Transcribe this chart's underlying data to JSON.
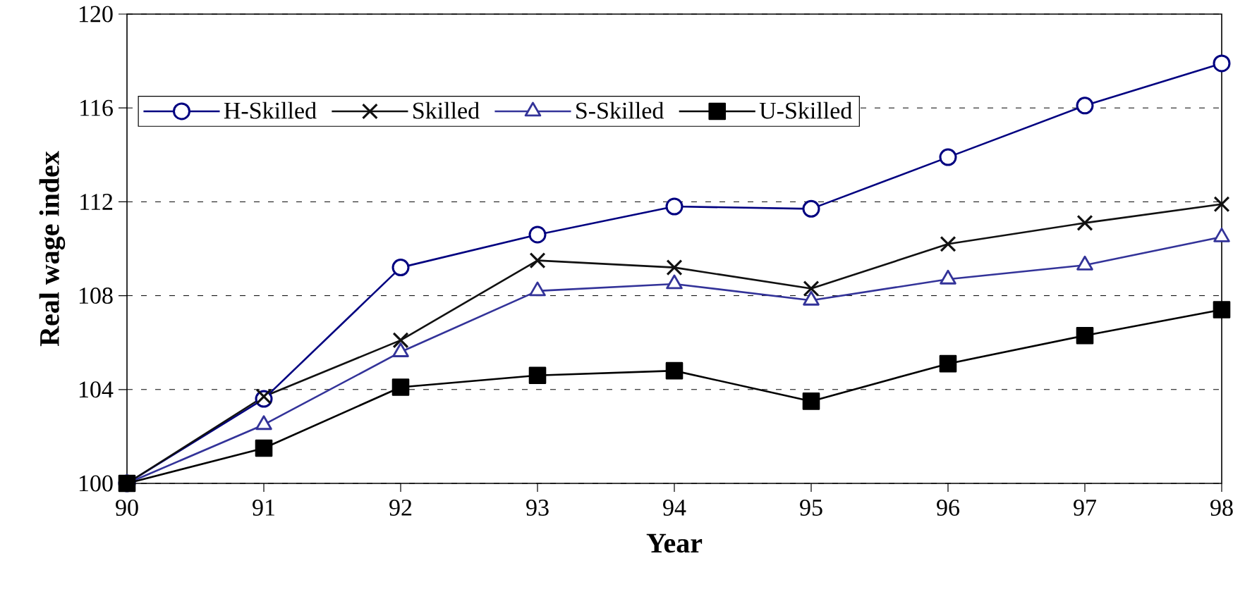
{
  "chart_data": {
    "type": "line",
    "xlabel": "Year",
    "ylabel": "Real wage index",
    "x": [
      90,
      91,
      92,
      93,
      94,
      95,
      96,
      97,
      98
    ],
    "xlim": [
      90,
      98
    ],
    "xticks": [
      90,
      91,
      92,
      93,
      94,
      95,
      96,
      97,
      98
    ],
    "ylim": [
      100,
      120
    ],
    "yticks": [
      100,
      104,
      108,
      112,
      116,
      120
    ],
    "grid": "y",
    "legend": "top left",
    "series": [
      {
        "name": "H-Skilled",
        "color": "#000080",
        "marker": "circle",
        "values": [
          100,
          103.6,
          109.2,
          110.6,
          111.8,
          111.7,
          113.9,
          116.1,
          117.9
        ]
      },
      {
        "name": "Skilled",
        "color": "#111111",
        "marker": "cross",
        "values": [
          100,
          103.7,
          106.1,
          109.5,
          109.2,
          108.3,
          110.2,
          111.1,
          111.9
        ]
      },
      {
        "name": "S-Skilled",
        "color": "#333399",
        "marker": "triangle",
        "values": [
          100,
          102.5,
          105.6,
          108.2,
          108.5,
          107.8,
          108.7,
          109.3,
          110.5
        ]
      },
      {
        "name": "U-Skilled",
        "color": "#000000",
        "marker": "square",
        "values": [
          100,
          101.5,
          104.1,
          104.6,
          104.8,
          103.5,
          105.1,
          106.3,
          107.4
        ]
      }
    ]
  }
}
